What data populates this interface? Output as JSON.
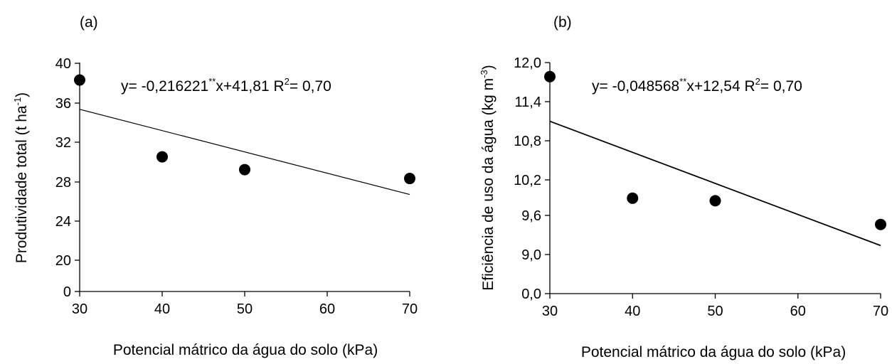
{
  "chart_data": [
    {
      "panel_label": "(a)",
      "type": "scatter",
      "xlabel": "Potencial mátrico da água do solo (kPa)",
      "ylabel": {
        "main": "Produtividade total (t ha",
        "sup": "-1",
        "end": ")"
      },
      "x_ticks": [
        "30",
        "40",
        "50",
        "60",
        "70"
      ],
      "y_ticks": [
        "0",
        "20",
        "24",
        "28",
        "32",
        "36",
        "40"
      ],
      "points": [
        {
          "x": 30,
          "y": 38.3
        },
        {
          "x": 40,
          "y": 30.5
        },
        {
          "x": 50,
          "y": 29.2
        },
        {
          "x": 70,
          "y": 28.3
        }
      ],
      "fit": {
        "slope": -0.216221,
        "intercept": 41.81,
        "x_from": 30,
        "x_to": 70
      },
      "equation": {
        "a": "y= -0,216221",
        "sig": "**",
        "b": "x+41,81  R",
        "r2sup": "2",
        "c": "= 0,70"
      }
    },
    {
      "panel_label": "(b)",
      "type": "scatter",
      "xlabel": "Potencial mátrico da água do solo (kPa)",
      "ylabel": {
        "main": "Eficiência de uso da água (kg m",
        "sup": "-3",
        "end": ")"
      },
      "x_ticks": [
        "30",
        "40",
        "50",
        "60",
        "70"
      ],
      "y_ticks": [
        "0,0",
        "9,0",
        "9,6",
        "10,2",
        "10,8",
        "11,4",
        "12,0"
      ],
      "points": [
        {
          "x": 30,
          "y": 11.78
        },
        {
          "x": 40,
          "y": 9.88
        },
        {
          "x": 50,
          "y": 9.84
        },
        {
          "x": 70,
          "y": 9.47
        }
      ],
      "fit": {
        "slope": -0.048568,
        "intercept": 12.54,
        "x_from": 30,
        "x_to": 70
      },
      "equation": {
        "a": "y= -0,048568",
        "sig": "**",
        "b": "x+12,54  R",
        "r2sup": "2",
        "c": "= 0,70"
      }
    }
  ]
}
